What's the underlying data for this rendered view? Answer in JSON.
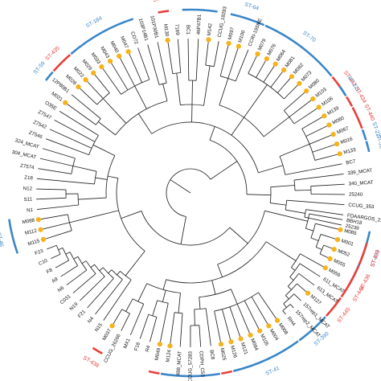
{
  "tree": {
    "leaves": [
      {
        "label": "BBH18",
        "dot": false
      },
      {
        "label": "M085",
        "dot": true
      },
      {
        "label": "M001",
        "dot": true
      },
      {
        "label": "M052",
        "dot": true
      },
      {
        "label": "M055",
        "dot": true
      },
      {
        "label": "M059",
        "dot": true
      },
      {
        "label": "611_MCAT",
        "dot": false
      },
      {
        "label": "613_MCAT",
        "dot": false
      },
      {
        "label": "M127",
        "dot": true
      },
      {
        "label": "157rep1_MCAT",
        "dot": false
      },
      {
        "label": "157rep2_MCAT",
        "dot": false
      },
      {
        "label": "RH4",
        "dot": false
      },
      {
        "label": "M008",
        "dot": true
      },
      {
        "label": "M004",
        "dot": true
      },
      {
        "label": "M105",
        "dot": true
      },
      {
        "label": "M084",
        "dot": true
      },
      {
        "label": "M121",
        "dot": true
      },
      {
        "label": "M126",
        "dot": true
      },
      {
        "label": "M025",
        "dot": true
      },
      {
        "label": "BC8",
        "dot": false
      },
      {
        "label": "CDPH_C53",
        "dot": false
      },
      {
        "label": "CCUG_57283",
        "dot": false
      },
      {
        "label": "488_MCAT",
        "dot": false
      },
      {
        "label": "M124",
        "dot": true
      },
      {
        "label": "M049",
        "dot": true
      },
      {
        "label": "R4",
        "dot": false
      },
      {
        "label": "F18",
        "dot": false
      },
      {
        "label": "MX1",
        "dot": false
      },
      {
        "label": "CCUG_26266",
        "dot": false
      },
      {
        "label": "M037",
        "dot": true
      },
      {
        "label": "N15",
        "dot": false
      },
      {
        "label": "N4",
        "dot": false
      },
      {
        "label": "F21",
        "dot": false
      },
      {
        "label": "N19",
        "dot": false
      },
      {
        "label": "C031",
        "dot": false
      },
      {
        "label": "N6",
        "dot": false
      },
      {
        "label": "A9",
        "dot": false
      },
      {
        "label": "F8",
        "dot": false
      },
      {
        "label": "C10",
        "dot": false
      },
      {
        "label": "F23",
        "dot": false
      },
      {
        "label": "M115",
        "dot": true
      },
      {
        "label": "M112",
        "dot": true
      },
      {
        "label": "M088",
        "dot": true
      },
      {
        "label": "N1",
        "dot": false
      },
      {
        "label": "S11",
        "dot": false
      },
      {
        "label": "N12",
        "dot": false
      },
      {
        "label": "Z18",
        "dot": false
      },
      {
        "label": "Z7574",
        "dot": false
      },
      {
        "label": "304_MCAT",
        "dot": false
      },
      {
        "label": "324_MCAT",
        "dot": false
      },
      {
        "label": "Z7546",
        "dot": false
      },
      {
        "label": "Z7542",
        "dot": false
      },
      {
        "label": "Z7547",
        "dot": false
      },
      {
        "label": "O35E",
        "dot": false
      },
      {
        "label": "M021",
        "dot": true
      },
      {
        "label": "12P80B1",
        "dot": false
      },
      {
        "label": "M028",
        "dot": true
      },
      {
        "label": "M022",
        "dot": true
      },
      {
        "label": "M029",
        "dot": true
      },
      {
        "label": "M033",
        "dot": true
      },
      {
        "label": "M043",
        "dot": true
      },
      {
        "label": "M040",
        "dot": true
      },
      {
        "label": "M047",
        "dot": true
      },
      {
        "label": "CO72",
        "dot": false
      },
      {
        "label": "103P14B1",
        "dot": false
      },
      {
        "label": "101P30B1",
        "dot": false
      },
      {
        "label": "M130",
        "dot": true
      },
      {
        "label": "7169",
        "dot": false
      },
      {
        "label": "BC1",
        "dot": false
      },
      {
        "label": "46P47B1",
        "dot": false
      },
      {
        "label": "M142",
        "dot": true
      },
      {
        "label": "CCUG_18283",
        "dot": false
      },
      {
        "label": "M097",
        "dot": true
      },
      {
        "label": "M100",
        "dot": true
      },
      {
        "label": "CCRI-195ME",
        "dot": false
      },
      {
        "label": "M079",
        "dot": true
      },
      {
        "label": "M076",
        "dot": true
      },
      {
        "label": "M064",
        "dot": true
      },
      {
        "label": "M081",
        "dot": true
      },
      {
        "label": "M082",
        "dot": true
      },
      {
        "label": "M073",
        "dot": true
      },
      {
        "label": "M080",
        "dot": true
      },
      {
        "label": "M103",
        "dot": true
      },
      {
        "label": "M106",
        "dot": true
      },
      {
        "label": "M139",
        "dot": true
      },
      {
        "label": "M060",
        "dot": true
      },
      {
        "label": "M067",
        "dot": true
      },
      {
        "label": "M016",
        "dot": true
      },
      {
        "label": "M133",
        "dot": true
      },
      {
        "label": "BC7",
        "dot": false
      },
      {
        "label": "339_MCAT",
        "dot": false
      },
      {
        "label": "340_MCAT",
        "dot": false
      },
      {
        "label": "25240",
        "dot": false
      },
      {
        "label": "CCUG_353",
        "dot": false
      },
      {
        "label": "FDAARGOS_213",
        "dot": false
      },
      {
        "label": "25239",
        "dot": false
      }
    ],
    "sequence_types": [
      {
        "label": "ST-203",
        "color": "#3a86c8",
        "from": "M085",
        "to": "M055"
      },
      {
        "label": "ST-439",
        "color": "#e8403a",
        "from": "M001",
        "to": "M052"
      },
      {
        "label": "ST-436",
        "color": "#e8403a",
        "from": "M055",
        "to": "M059"
      },
      {
        "label": "ST-444",
        "color": "#e8403a",
        "from": "M059",
        "to": "611_MCAT"
      },
      {
        "label": "ST-445",
        "color": "#e8403a",
        "from": "613_MCAT",
        "to": "M127"
      },
      {
        "label": "ST-390",
        "color": "#3a86c8",
        "from": "157rep1_MCAT",
        "to": "RH4"
      },
      {
        "label": "ST-41",
        "color": "#3a86c8",
        "from": "M008",
        "to": "M126"
      },
      {
        "label": "ST-43",
        "color": "#e8403a",
        "from": "M025",
        "to": "M025"
      },
      {
        "label": "ST-371",
        "color": "#3a86c8",
        "from": "BC8",
        "to": "M124"
      },
      {
        "label": "ST-441",
        "color": "#e8403a",
        "from": "M049",
        "to": "M049"
      },
      {
        "label": "ST-438",
        "color": "#e8403a",
        "from": "M037",
        "to": "M037"
      },
      {
        "label": "ST-46",
        "color": "#3a86c8",
        "from": "M115",
        "to": "M088"
      },
      {
        "label": "ST-59",
        "color": "#3a86c8",
        "from": "12P80B1",
        "to": "12P80B1"
      },
      {
        "label": "ST-435",
        "color": "#e8403a",
        "from": "M028",
        "to": "M022"
      },
      {
        "label": "ST-184",
        "color": "#3a86c8",
        "from": "M029",
        "to": "CO72"
      },
      {
        "label": "ST-443",
        "color": "#e8403a",
        "from": "M130",
        "to": "M130"
      },
      {
        "label": "ST-38",
        "color": "#3a86c8",
        "from": "BC1",
        "to": "M142"
      },
      {
        "label": "ST-64",
        "color": "#3a86c8",
        "from": "M097",
        "to": "CCRI-195ME"
      },
      {
        "label": "ST-70",
        "color": "#3a86c8",
        "from": "M079",
        "to": "M080"
      },
      {
        "label": "ST-442",
        "color": "#e8403a",
        "from": "M103",
        "to": "M106"
      },
      {
        "label": "ST-221",
        "color": "#3a86c8",
        "from": "M106",
        "to": "M106"
      },
      {
        "label": "ST-434",
        "color": "#e8403a",
        "from": "M139",
        "to": "M139"
      },
      {
        "label": "ST-440",
        "color": "#e8403a",
        "from": "M060",
        "to": "M067"
      },
      {
        "label": "ST-227",
        "color": "#3a86c8",
        "from": "M016",
        "to": "M016"
      },
      {
        "label": "ST-224",
        "color": "#3a86c8",
        "from": "M133",
        "to": "M133"
      }
    ],
    "colors": {
      "dot": "#f6b21b",
      "branch": "#222222",
      "st_blue": "#3a86c8",
      "st_red": "#e8403a"
    }
  }
}
